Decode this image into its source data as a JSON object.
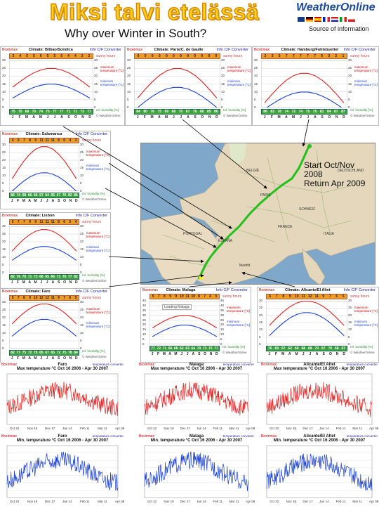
{
  "header": {
    "title": "Miksi talvi etelässä",
    "subtitle": "Why over Winter in South?",
    "logo_text": "WeatherOnline",
    "source_label": "Source of information"
  },
  "common": {
    "brand": "Boxinmax",
    "info": "Info",
    "converter": "C/F Converter",
    "sunny_hours_label": "sunny hours",
    "max_temp_label": "maximum temperature [°C]",
    "min_temp_label": "minimum temperature [°C]",
    "humidity_label": "rel. humidity [%]",
    "credit": "© WeatherOnline",
    "months": [
      "J",
      "F",
      "M",
      "A",
      "M",
      "J",
      "J",
      "A",
      "S",
      "O",
      "N",
      "D"
    ],
    "ts_link": "temperature converter",
    "ts_credit": "weatheronline.co.uk"
  },
  "climate_charts": [
    {
      "title": "Climate: Bilbao/Sondica",
      "sun": [
        3,
        4,
        5,
        5,
        6,
        5,
        5,
        5,
        4,
        4,
        2,
        2
      ],
      "hum": [
        75,
        75,
        68,
        70,
        74,
        75,
        77,
        77,
        71,
        71,
        73,
        77
      ],
      "y_ticks": [
        0,
        5,
        10,
        15,
        20,
        25,
        30
      ]
    },
    {
      "title": "Climate: Paris/C. de Gaulle",
      "sun": [
        0,
        0,
        0,
        0,
        0,
        0,
        0,
        0,
        0,
        0,
        0,
        0
      ],
      "hum": [
        84,
        80,
        76,
        75,
        69,
        68,
        70,
        67,
        76,
        80,
        85,
        86
      ],
      "y_ticks": [
        0,
        5,
        10,
        15,
        20,
        25,
        30
      ]
    },
    {
      "title": "Climate: Hamburg/Fuhlsbuettel",
      "sun": [
        2,
        3,
        5,
        7,
        7,
        7,
        7,
        7,
        5,
        3,
        2,
        1
      ],
      "hum": [
        86,
        83,
        78,
        74,
        72,
        74,
        75,
        75,
        81,
        84,
        87,
        87
      ],
      "y_ticks": [
        0,
        5,
        10,
        15,
        20,
        25,
        30
      ]
    },
    {
      "title": "Climate: Salamanca",
      "sun": [
        4,
        6,
        7,
        8,
        9,
        11,
        11,
        11,
        8,
        6,
        4,
        3
      ],
      "hum": [
        86,
        74,
        68,
        66,
        66,
        57,
        54,
        55,
        67,
        76,
        82,
        86
      ],
      "y_ticks": [
        0,
        5,
        10,
        15,
        20,
        25,
        30
      ]
    },
    {
      "title": "Climate: Lisbon",
      "sun": [
        5,
        7,
        7,
        9,
        9,
        11,
        11,
        11,
        8,
        6,
        5,
        4
      ],
      "hum": [
        82,
        76,
        70,
        71,
        73,
        66,
        65,
        66,
        71,
        76,
        77,
        82
      ],
      "y_ticks": [
        0,
        5,
        10,
        15,
        20,
        25,
        30
      ]
    },
    {
      "title": "Climate: Faro",
      "sun": [
        5,
        7,
        8,
        9,
        10,
        12,
        12,
        11,
        9,
        7,
        6,
        5
      ],
      "hum": [
        82,
        77,
        75,
        72,
        75,
        65,
        67,
        65,
        72,
        75,
        78,
        84
      ],
      "y_ticks": [
        0,
        5,
        10,
        15,
        20,
        25,
        30
      ]
    },
    {
      "title": "Climate: Malaga",
      "sun": [
        5,
        7,
        8,
        9,
        9,
        10,
        11,
        10,
        8,
        7,
        6,
        5
      ],
      "hum": [
        77,
        72,
        71,
        66,
        66,
        62,
        63,
        64,
        70,
        73,
        72,
        77
      ],
      "y_ticks": [
        0,
        5,
        10,
        15,
        20,
        25,
        30,
        35,
        40,
        45
      ],
      "loading": "Loading Malaga"
    },
    {
      "title": "Climate: Alicante/El Altet",
      "sun": [
        6,
        7,
        8,
        9,
        10,
        11,
        12,
        11,
        9,
        7,
        6,
        5
      ],
      "hum": [
        70,
        69,
        67,
        62,
        69,
        68,
        68,
        70,
        67,
        70,
        68,
        67
      ],
      "y_ticks": [
        0,
        5,
        10,
        15,
        20,
        25,
        30
      ]
    }
  ],
  "ts_charts": [
    {
      "city": "Faro",
      "title": "Max temperature °C Oct 16 2006 - Apr 30 2007",
      "kind": "max"
    },
    {
      "city": "Malaga",
      "title": "Max temperature °C Oct 16 2006 - Apr 30 2007",
      "kind": "max"
    },
    {
      "city": "Alicante/El Altet",
      "title": "Max temperature °C Oct 16 2006 - Apr 30 2007",
      "kind": "max"
    },
    {
      "city": "Faro",
      "title": "Min. temperature °C Oct 16 2006 - Apr 30 2007",
      "kind": "min"
    },
    {
      "city": "Malaga",
      "title": "Min. temperature °C Oct 16 2006 - Apr 30 2007",
      "kind": "min"
    },
    {
      "city": "Alicante/El Altet",
      "title": "Min. temperature °C Oct 16 2006 - Apr 30 2007",
      "kind": "min"
    }
  ],
  "ts_x_ticks": [
    "Oct 22",
    "Nov 19",
    "Dec 17",
    "Jan 14",
    "Feb 11",
    "Mar 11",
    "Apr 08"
  ],
  "map": {
    "annotation_line1": "Start Oct/Nov 2008",
    "annotation_line2": "Return    Apr 2009",
    "route_color": "#22c01a",
    "sea_color": "#7fa7c9",
    "land_color": "#e9dcc2"
  },
  "colors": {
    "max_line": "#d22",
    "min_line": "#1a3fd0",
    "sun_bar": "#f29c1f",
    "hum_bar": "#3da33d",
    "title_fill": "#ffd21f"
  }
}
